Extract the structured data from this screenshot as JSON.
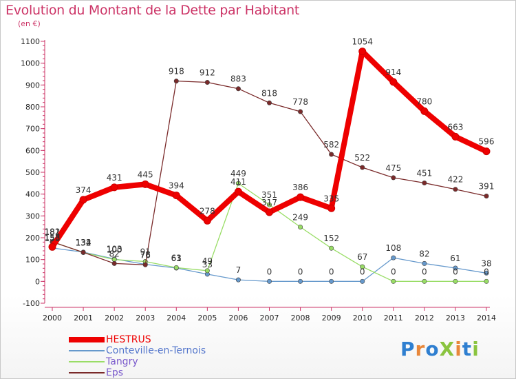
{
  "title": "Evolution du Montant de la Dette par Habitant",
  "subtitle": "(en €)",
  "logo": {
    "text": "ProXiti",
    "colors": [
      "#2f7fd0",
      "#e8873a",
      "#2f7fd0",
      "#8ac43f",
      "#e8873a",
      "#2f7fd0",
      "#8ac43f"
    ]
  },
  "chart_data": {
    "type": "line",
    "x": [
      "2000",
      "2001",
      "2002",
      "2003",
      "2004",
      "2005",
      "2006",
      "2007",
      "2008",
      "2009",
      "2010",
      "2011",
      "2012",
      "2013",
      "2014"
    ],
    "ylim": [
      -100,
      1100
    ],
    "yticks": [
      -100,
      0,
      100,
      200,
      300,
      400,
      500,
      600,
      700,
      800,
      900,
      1000,
      1100
    ],
    "grid": false,
    "legend_position": "bottom-left",
    "series": [
      {
        "name": "HESTRUS",
        "color": "#ee0000",
        "values": [
          158,
          374,
          431,
          445,
          394,
          278,
          411,
          317,
          386,
          335,
          1054,
          914,
          780,
          663,
          596
        ]
      },
      {
        "name": "Conteville-en-Ternois",
        "color": "#6699cc",
        "values": [
          153,
          134,
          103,
          78,
          61,
          33,
          7,
          0,
          0,
          0,
          0,
          108,
          82,
          61,
          38
        ]
      },
      {
        "name": "Tangry",
        "color": "#99dd66",
        "values": [
          182,
          132,
          100,
          91,
          63,
          49,
          449,
          351,
          249,
          152,
          67,
          0,
          0,
          0,
          0
        ]
      },
      {
        "name": "Eps",
        "color": "#7a2a2a",
        "values": [
          181,
          133,
          82,
          76,
          918,
          912,
          883,
          818,
          778,
          582,
          522,
          475,
          451,
          422,
          391
        ]
      }
    ]
  }
}
